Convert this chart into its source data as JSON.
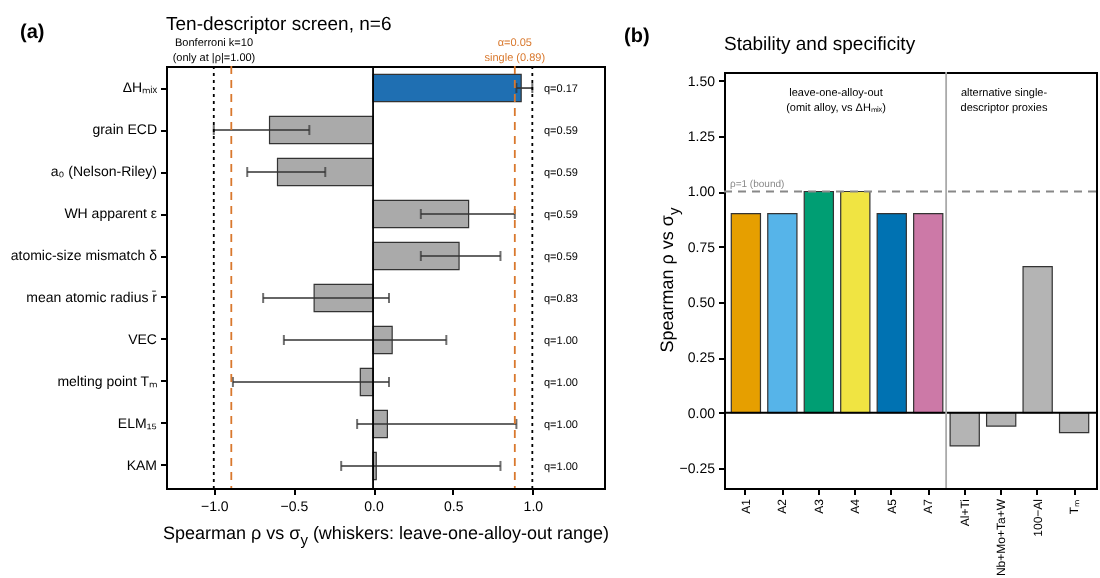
{
  "chart_data": [
    {
      "type": "bar",
      "orientation": "horizontal",
      "title": "Ten-descriptor screen, n=6",
      "xlabel": "Spearman ρ vs σ$_{y}$ (whiskers: leave-one-alloy-out range)",
      "categories": [
        "ΔHₘᵢₓ",
        "grain ECD",
        "a₀ (Nelson-Riley)",
        "WH apparent ε",
        "atomic-size mismatch δ",
        "mean atomic radius r̄",
        "VEC",
        "melting point Tₘ",
        "ELM₁₅",
        "KAM"
      ],
      "values": [
        0.93,
        -0.65,
        -0.6,
        0.6,
        0.54,
        -0.37,
        0.12,
        -0.08,
        0.09,
        0.02
      ],
      "colors": [
        "#1f6fb2",
        "#aaaaaa",
        "#aaaaaa",
        "#aaaaaa",
        "#aaaaaa",
        "#aaaaaa",
        "#aaaaaa",
        "#aaaaaa",
        "#aaaaaa",
        "#aaaaaa"
      ],
      "errors": [
        [
          0.9,
          1.0
        ],
        [
          -1.0,
          -0.4
        ],
        [
          -0.79,
          -0.3
        ],
        [
          0.3,
          0.89
        ],
        [
          0.3,
          0.8
        ],
        [
          -0.69,
          0.1
        ],
        [
          -0.56,
          0.46
        ],
        [
          -0.88,
          0.1
        ],
        [
          -0.1,
          0.9
        ],
        [
          -0.2,
          0.8
        ]
      ],
      "xlim": [
        -1.3,
        1.45
      ],
      "xticks": [
        {
          "value": -1,
          "label": "−1.0"
        },
        {
          "value": -0.5,
          "label": "−0.5"
        },
        {
          "value": 0,
          "label": "0.0"
        },
        {
          "value": 0.5,
          "label": "0.5"
        },
        {
          "value": 1,
          "label": "1.0"
        }
      ],
      "ref_lines": [
        {
          "axis": "x",
          "value": 0,
          "color": "#000000",
          "line_style": "solid"
        },
        {
          "axis": "x",
          "value": -1,
          "color": "#000000",
          "line_style": "dotted"
        },
        {
          "axis": "x",
          "value": 1,
          "color": "#000000",
          "line_style": "dotted"
        },
        {
          "axis": "x",
          "value": -0.89,
          "color": "#d9782d",
          "line_style": "dashed"
        },
        {
          "axis": "x",
          "value": 0.89,
          "label": "α=0.05\nsingle (0.89)",
          "color": "#d9782d",
          "line_style": "dashed"
        }
      ],
      "annotations": [
        "(a)",
        "Bonferroni k=10\n(only at |ρ|=1.00)",
        "q=0.17",
        "q=0.59",
        "q=0.59",
        "q=0.59",
        "q=0.59",
        "q=0.83",
        "q=1.00",
        "q=1.00",
        "q=1.00",
        "q=1.00"
      ]
    },
    {
      "type": "bar",
      "title": "Stability and specificity",
      "ylabel": "Spearman ρ vs σ$_{y}$",
      "categories": [
        "A1",
        "A2",
        "A3",
        "A4",
        "A5",
        "A7",
        "Al+Ti",
        "Nb+Mo+Ta+W",
        "100−Al",
        "Tₘ"
      ],
      "values": [
        0.9,
        0.9,
        1.0,
        1.0,
        0.9,
        0.9,
        -0.15,
        -0.06,
        0.66,
        -0.09
      ],
      "colors": [
        "#e69f00",
        "#56b4e9",
        "#009e73",
        "#f0e442",
        "#0072b2",
        "#cc79a7",
        "#b4b4b4",
        "#b4b4b4",
        "#b4b4b4",
        "#b4b4b4"
      ],
      "ylim": [
        -0.34,
        1.54
      ],
      "yticks": [
        {
          "value": -0.25,
          "label": "−0.25"
        },
        {
          "value": 0,
          "label": "0.00"
        },
        {
          "value": 0.25,
          "label": "0.25"
        },
        {
          "value": 0.5,
          "label": "0.50"
        },
        {
          "value": 0.75,
          "label": "0.75"
        },
        {
          "value": 1,
          "label": "1.00"
        },
        {
          "value": 1.25,
          "label": "1.25"
        },
        {
          "value": 1.5,
          "label": "1.50"
        }
      ],
      "ref_lines": [
        {
          "axis": "y",
          "value": 1,
          "label": "ρ=1 (bound)",
          "color": "#888888",
          "line_style": "dashed"
        },
        {
          "axis": "y",
          "value": 0,
          "color": "#000000",
          "line_style": "solid"
        },
        {
          "axis": "x",
          "value": "A7",
          "color": "#aaaaaa",
          "line_style": "solid"
        }
      ],
      "annotations": [
        "(b)",
        "leave-one-alloy-out\n(omit alloy, vs ΔHₘᵢₓ)",
        "alternative single-\ndescriptor proxies"
      ]
    }
  ]
}
